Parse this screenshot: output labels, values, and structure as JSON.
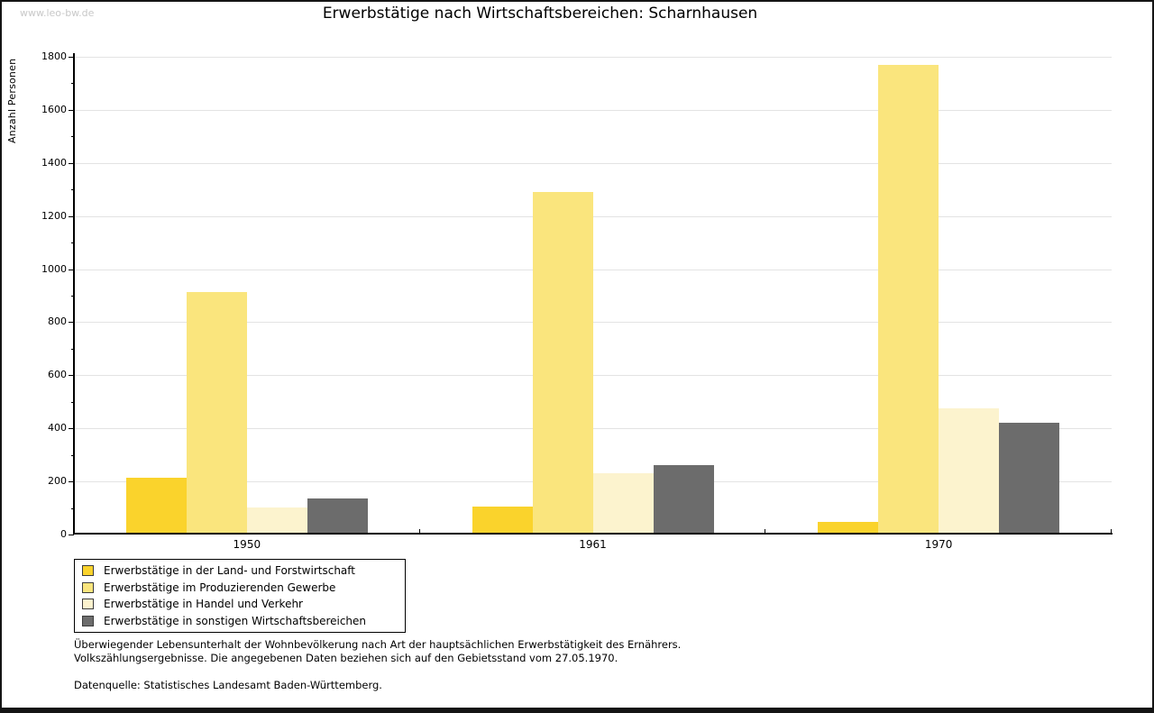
{
  "watermark": "www.leo-bw.de",
  "title": "Erwerbstätige nach Wirtschaftsbereichen: Scharnhausen",
  "chart_data": {
    "type": "bar",
    "title": "Erwerbstätige nach Wirtschaftsbereichen: Scharnhausen",
    "xlabel": "",
    "ylabel": "Anzahl Personen",
    "categories": [
      "1950",
      "1961",
      "1970"
    ],
    "series": [
      {
        "name": "Erwerbstätige in der Land- und Forstwirtschaft",
        "color": "#FAD32C",
        "values": [
          214,
          105,
          49
        ]
      },
      {
        "name": "Erwerbstätige im Produzierenden Gewerbe",
        "color": "#FAE57D",
        "values": [
          913,
          1292,
          1769
        ]
      },
      {
        "name": "Erwerbstätige in Handel und Verkehr",
        "color": "#FCF3CE",
        "values": [
          103,
          232,
          476
        ]
      },
      {
        "name": "Erwerbstätige in sonstigen Wirtschaftsbereichen",
        "color": "#6C6C6C",
        "values": [
          137,
          261,
          422
        ]
      }
    ],
    "ylim": [
      0,
      1800
    ],
    "ytick_step": 200,
    "yminor_step": 100,
    "grid": "horizontal-major",
    "legend_position": "bottom-left-outside"
  },
  "footnotes": {
    "line1": "Überwiegender Lebensunterhalt der Wohnbevölkerung nach Art der hauptsächlichen Erwerbstätigkeit des Ernährers.",
    "line2": "Volkszählungsergebnisse. Die angegebenen Daten beziehen sich auf den Gebietsstand vom 27.05.1970.",
    "source": "Datenquelle: Statistisches Landesamt Baden-Württemberg."
  },
  "colors": {
    "axis": "#000000",
    "gridline": "#E3E3E3",
    "watermark": "#C8C8C8",
    "background": "#FFFFFF",
    "frame": "#141414"
  }
}
